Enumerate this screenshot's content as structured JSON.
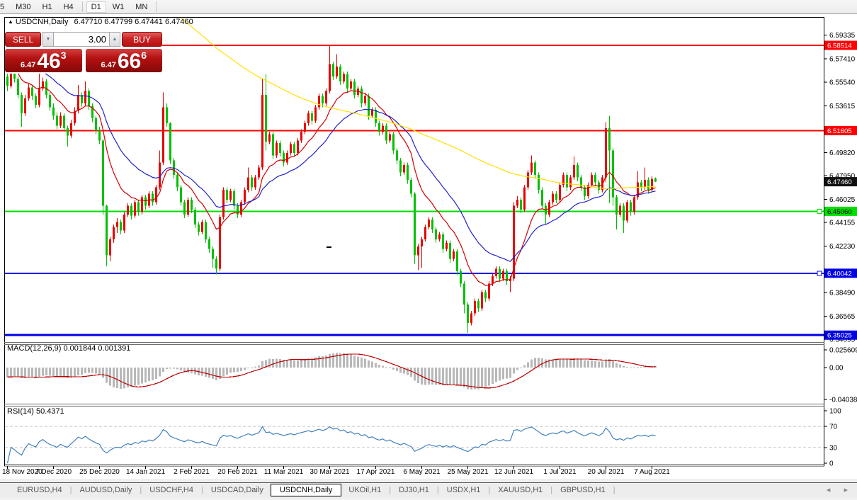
{
  "toolbar": {
    "timeframes": [
      "5",
      "M30",
      "H1",
      "H4",
      "D1",
      "W1",
      "MN"
    ],
    "active_timeframe": "D1"
  },
  "window": {
    "collapse_icon": "▲",
    "title": "USDCNH,Daily",
    "ohlc_text": "6.47710 6.47799 6.47441 6.47460"
  },
  "trade_panel": {
    "sell_label": "SELL",
    "buy_label": "BUY",
    "volume": "3.00",
    "spinner_down": "▼",
    "spinner_up": "▲",
    "sell_price": {
      "small": "6.47",
      "big": "46",
      "sup": "3"
    },
    "buy_price": {
      "small": "6.47",
      "big": "66",
      "sup": "6"
    }
  },
  "indicators": {
    "macd": {
      "label": "MACD(12,26,9)",
      "values": "0.001844 0.001391",
      "axis_labels": [
        "0.025609",
        "0.00",
        "-0.040386"
      ],
      "histogram_color": "#b8b8b8",
      "signal_color": "#c00000"
    },
    "rsi": {
      "label": "RSI(14)",
      "value": "50.4371",
      "axis_labels": [
        "100",
        "70",
        "30",
        "0"
      ],
      "level_lines": [
        70,
        30
      ],
      "line_color": "#4080c0"
    }
  },
  "price_axis": {
    "ticks": [
      6.59335,
      6.5741,
      6.5554,
      6.53615,
      6.4982,
      6.4795,
      6.46025,
      6.44155,
      6.4223,
      6.3849,
      6.36565,
      6.34695
    ],
    "badges": [
      {
        "value": "6.58514",
        "price": 6.58514,
        "bg": "#ff0000",
        "fg": "#ffffff",
        "role": "resistance"
      },
      {
        "value": "6.51605",
        "price": 6.51605,
        "bg": "#ff0000",
        "fg": "#ffffff",
        "role": "resistance"
      },
      {
        "value": "6.47460",
        "price": 6.4746,
        "bg": "#111111",
        "fg": "#ffffff",
        "role": "current-price"
      },
      {
        "value": "6.45060",
        "price": 6.4506,
        "bg": "#00de00",
        "fg": "#000000",
        "role": "support"
      },
      {
        "value": "6.40042",
        "price": 6.40042,
        "bg": "#0000e6",
        "fg": "#ffffff",
        "role": "support"
      },
      {
        "value": "6.35025",
        "price": 6.35025,
        "bg": "#0000e6",
        "fg": "#ffffff",
        "role": "support"
      }
    ]
  },
  "levels": [
    {
      "price": 6.58514,
      "color": "#ff0000",
      "width": 2,
      "handle": false
    },
    {
      "price": 6.51605,
      "color": "#ff0000",
      "width": 2,
      "handle": false
    },
    {
      "price": 6.4506,
      "color": "#00de00",
      "width": 2,
      "handle": true
    },
    {
      "price": 6.40042,
      "color": "#0000e6",
      "width": 2,
      "handle": true
    },
    {
      "price": 6.35025,
      "color": "#0000e6",
      "width": 3,
      "handle": false
    }
  ],
  "date_axis": {
    "labels": [
      {
        "text": "18 Nov 2020",
        "index": 0
      },
      {
        "text": "7 Dec 2020",
        "index": 13
      },
      {
        "text": "25 Dec 2020",
        "index": 26
      },
      {
        "text": "14 Jan 2021",
        "index": 39
      },
      {
        "text": "2 Feb 2021",
        "index": 52
      },
      {
        "text": "20 Feb 2021",
        "index": 65
      },
      {
        "text": "11 Mar 2021",
        "index": 78
      },
      {
        "text": "30 Mar 2021",
        "index": 91
      },
      {
        "text": "17 Apr 2021",
        "index": 104
      },
      {
        "text": "6 May 2021",
        "index": 117
      },
      {
        "text": "25 May 2021",
        "index": 130
      },
      {
        "text": "12 Jun 2021",
        "index": 143
      },
      {
        "text": "1 Jul 2021",
        "index": 156
      },
      {
        "text": "20 Jul 2021",
        "index": 169
      },
      {
        "text": "7 Aug 2021",
        "index": 182
      }
    ]
  },
  "tabs": {
    "items": [
      "EURUSD,H4",
      "AUDUSD,Daily",
      "USDCHF,H4",
      "USDCAD,Daily",
      "USDCNH,Daily",
      "UKOil,H1",
      "DJ30,H1",
      "USDX,H1",
      "XAUUSD,H1",
      "GBPUSD,H1"
    ],
    "active": "USDCNH,Daily",
    "scroll_left": "◂",
    "scroll_right": "▸"
  },
  "chart_data": {
    "type": "candlestick",
    "symbol": "USDCNH",
    "timeframe": "Daily",
    "title": "USDCNH,Daily",
    "ohlc_current": {
      "open": 6.4771,
      "high": 6.47799,
      "low": 6.47441,
      "close": 6.4746
    },
    "ylim": [
      6.344,
      6.605
    ],
    "bull_color": "#ea0000",
    "bear_color": "#00c000",
    "overlays": [
      {
        "name": "EMA12",
        "color": "#d40000"
      },
      {
        "name": "EMA26",
        "color": "#2222c8"
      },
      {
        "name": "SMA144",
        "color": "#ffe000"
      }
    ],
    "prehistory_for_overlays": [
      [
        100,
        6.98,
        6.66
      ],
      [
        50,
        6.65,
        6.56
      ]
    ],
    "macd_params": [
      12,
      26,
      9
    ],
    "rsi_period": 14,
    "candles": [
      [
        6.56,
        6.566,
        6.548,
        6.552
      ],
      [
        6.552,
        6.578,
        6.55,
        6.565
      ],
      [
        6.565,
        6.568,
        6.555,
        6.558
      ],
      [
        6.558,
        6.56,
        6.542,
        6.545
      ],
      [
        6.545,
        6.547,
        6.519,
        6.53
      ],
      [
        6.53,
        6.545,
        6.528,
        6.542
      ],
      [
        6.542,
        6.554,
        6.54,
        6.551
      ],
      [
        6.551,
        6.553,
        6.541,
        6.544
      ],
      [
        6.544,
        6.546,
        6.534,
        6.537
      ],
      [
        6.537,
        6.573,
        6.535,
        6.55
      ],
      [
        6.55,
        6.559,
        6.548,
        6.556
      ],
      [
        6.556,
        6.558,
        6.542,
        6.545
      ],
      [
        6.545,
        6.547,
        6.532,
        6.535
      ],
      [
        6.535,
        6.538,
        6.525,
        6.528
      ],
      [
        6.528,
        6.531,
        6.517,
        6.52
      ],
      [
        6.52,
        6.531,
        6.518,
        6.528
      ],
      [
        6.528,
        6.53,
        6.515,
        6.518
      ],
      [
        6.518,
        6.52,
        6.503,
        6.512
      ],
      [
        6.512,
        6.525,
        6.51,
        6.522
      ],
      [
        6.522,
        6.535,
        6.52,
        6.532
      ],
      [
        6.532,
        6.553,
        6.53,
        6.545
      ],
      [
        6.545,
        6.547,
        6.535,
        6.538
      ],
      [
        6.538,
        6.556,
        6.536,
        6.548
      ],
      [
        6.548,
        6.55,
        6.533,
        6.536
      ],
      [
        6.536,
        6.538,
        6.523,
        6.526
      ],
      [
        6.526,
        6.528,
        6.513,
        6.516
      ],
      [
        6.516,
        6.519,
        6.505,
        6.508
      ],
      [
        6.508,
        6.509,
        6.448,
        6.455
      ],
      [
        6.455,
        6.456,
        6.406,
        6.415
      ],
      [
        6.415,
        6.43,
        6.41,
        6.428
      ],
      [
        6.428,
        6.44,
        6.425,
        6.438
      ],
      [
        6.438,
        6.445,
        6.433,
        6.442
      ],
      [
        6.442,
        6.444,
        6.432,
        6.435
      ],
      [
        6.435,
        6.45,
        6.433,
        6.448
      ],
      [
        6.448,
        6.457,
        6.446,
        6.455
      ],
      [
        6.455,
        6.457,
        6.444,
        6.447
      ],
      [
        6.447,
        6.46,
        6.445,
        6.458
      ],
      [
        6.458,
        6.46,
        6.447,
        6.45
      ],
      [
        6.45,
        6.464,
        6.448,
        6.462
      ],
      [
        6.462,
        6.464,
        6.452,
        6.455
      ],
      [
        6.455,
        6.467,
        6.453,
        6.465
      ],
      [
        6.465,
        6.467,
        6.455,
        6.458
      ],
      [
        6.458,
        6.472,
        6.456,
        6.47
      ],
      [
        6.47,
        6.5,
        6.468,
        6.49
      ],
      [
        6.49,
        6.547,
        6.488,
        6.535
      ],
      [
        6.535,
        6.538,
        6.519,
        6.522
      ],
      [
        6.522,
        6.523,
        6.489,
        6.492
      ],
      [
        6.492,
        6.494,
        6.477,
        6.48
      ],
      [
        6.48,
        6.482,
        6.467,
        6.47
      ],
      [
        6.47,
        6.472,
        6.455,
        6.458
      ],
      [
        6.458,
        6.46,
        6.445,
        6.448
      ],
      [
        6.448,
        6.462,
        6.446,
        6.46
      ],
      [
        6.46,
        6.462,
        6.449,
        6.452
      ],
      [
        6.452,
        6.454,
        6.437,
        6.44
      ],
      [
        6.44,
        6.442,
        6.431,
        6.434
      ],
      [
        6.434,
        6.444,
        6.432,
        6.442
      ],
      [
        6.442,
        6.444,
        6.425,
        6.428
      ],
      [
        6.428,
        6.43,
        6.417,
        6.42
      ],
      [
        6.42,
        6.422,
        6.405,
        6.412
      ],
      [
        6.412,
        6.414,
        6.3995,
        6.404
      ],
      [
        6.404,
        6.448,
        6.402,
        6.446
      ],
      [
        6.446,
        6.47,
        6.444,
        6.468
      ],
      [
        6.468,
        6.47,
        6.457,
        6.46
      ],
      [
        6.46,
        6.469,
        6.458,
        6.467
      ],
      [
        6.467,
        6.469,
        6.452,
        6.455
      ],
      [
        6.455,
        6.457,
        6.445,
        6.448
      ],
      [
        6.448,
        6.46,
        6.446,
        6.458
      ],
      [
        6.458,
        6.47,
        6.456,
        6.468
      ],
      [
        6.468,
        6.486,
        6.466,
        6.478
      ],
      [
        6.478,
        6.48,
        6.467,
        6.47
      ],
      [
        6.47,
        6.48,
        6.468,
        6.478
      ],
      [
        6.478,
        6.488,
        6.476,
        6.486
      ],
      [
        6.486,
        6.558,
        6.484,
        6.545
      ],
      [
        6.545,
        6.562,
        6.5,
        6.507
      ],
      [
        6.507,
        6.515,
        6.505,
        6.513
      ],
      [
        6.513,
        6.515,
        6.493,
        6.496
      ],
      [
        6.496,
        6.508,
        6.494,
        6.506
      ],
      [
        6.506,
        6.508,
        6.495,
        6.498
      ],
      [
        6.498,
        6.5,
        6.487,
        6.49
      ],
      [
        6.49,
        6.5,
        6.488,
        6.498
      ],
      [
        6.498,
        6.507,
        6.496,
        6.505
      ],
      [
        6.505,
        6.507,
        6.495,
        6.498
      ],
      [
        6.498,
        6.51,
        6.496,
        6.508
      ],
      [
        6.508,
        6.517,
        6.506,
        6.515
      ],
      [
        6.515,
        6.524,
        6.513,
        6.522
      ],
      [
        6.522,
        6.532,
        6.52,
        6.53
      ],
      [
        6.53,
        6.532,
        6.521,
        6.524
      ],
      [
        6.524,
        6.537,
        6.522,
        6.535
      ],
      [
        6.535,
        6.546,
        6.533,
        6.544
      ],
      [
        6.544,
        6.546,
        6.535,
        6.538
      ],
      [
        6.538,
        6.55,
        6.536,
        6.548
      ],
      [
        6.548,
        6.5851,
        6.546,
        6.57
      ],
      [
        6.57,
        6.572,
        6.557,
        6.56
      ],
      [
        6.56,
        6.578,
        6.558,
        6.568
      ],
      [
        6.568,
        6.57,
        6.553,
        6.556
      ],
      [
        6.556,
        6.564,
        6.554,
        6.562
      ],
      [
        6.562,
        6.564,
        6.547,
        6.55
      ],
      [
        6.55,
        6.558,
        6.548,
        6.556
      ],
      [
        6.556,
        6.558,
        6.542,
        6.545
      ],
      [
        6.545,
        6.552,
        6.543,
        6.55
      ],
      [
        6.55,
        6.552,
        6.535,
        6.538
      ],
      [
        6.538,
        6.546,
        6.536,
        6.544
      ],
      [
        6.544,
        6.546,
        6.525,
        6.528
      ],
      [
        6.528,
        6.535,
        6.526,
        6.533
      ],
      [
        6.533,
        6.535,
        6.519,
        6.522
      ],
      [
        6.522,
        6.524,
        6.512,
        6.515
      ],
      [
        6.515,
        6.522,
        6.513,
        6.52
      ],
      [
        6.52,
        6.522,
        6.505,
        6.508
      ],
      [
        6.508,
        6.515,
        6.506,
        6.513
      ],
      [
        6.513,
        6.515,
        6.497,
        6.5
      ],
      [
        6.5,
        6.502,
        6.489,
        6.492
      ],
      [
        6.492,
        6.494,
        6.479,
        6.482
      ],
      [
        6.482,
        6.49,
        6.48,
        6.488
      ],
      [
        6.488,
        6.49,
        6.473,
        6.476
      ],
      [
        6.476,
        6.478,
        6.462,
        6.465
      ],
      [
        6.465,
        6.466,
        6.408,
        6.415
      ],
      [
        6.415,
        6.424,
        6.403,
        6.422
      ],
      [
        6.422,
        6.43,
        6.405,
        6.428
      ],
      [
        6.428,
        6.44,
        6.426,
        6.438
      ],
      [
        6.438,
        6.446,
        6.436,
        6.444
      ],
      [
        6.444,
        6.446,
        6.433,
        6.436
      ],
      [
        6.436,
        6.438,
        6.425,
        6.428
      ],
      [
        6.428,
        6.434,
        6.426,
        6.432
      ],
      [
        6.432,
        6.434,
        6.417,
        6.42
      ],
      [
        6.42,
        6.427,
        6.418,
        6.425
      ],
      [
        6.425,
        6.427,
        6.409,
        6.412
      ],
      [
        6.412,
        6.42,
        6.41,
        6.418
      ],
      [
        6.418,
        6.42,
        6.399,
        6.402
      ],
      [
        6.402,
        6.404,
        6.389,
        6.392
      ],
      [
        6.392,
        6.394,
        6.368,
        6.375
      ],
      [
        6.375,
        6.377,
        6.352,
        6.36
      ],
      [
        6.36,
        6.37,
        6.358,
        6.368
      ],
      [
        6.368,
        6.38,
        6.366,
        6.378
      ],
      [
        6.378,
        6.38,
        6.369,
        6.372
      ],
      [
        6.372,
        6.387,
        6.37,
        6.385
      ],
      [
        6.385,
        6.387,
        6.377,
        6.38
      ],
      [
        6.38,
        6.394,
        6.378,
        6.392
      ],
      [
        6.392,
        6.4,
        6.39,
        6.398
      ],
      [
        6.398,
        6.406,
        6.396,
        6.404
      ],
      [
        6.404,
        6.406,
        6.393,
        6.396
      ],
      [
        6.396,
        6.404,
        6.394,
        6.402
      ],
      [
        6.402,
        6.404,
        6.391,
        6.394
      ],
      [
        6.394,
        6.398,
        6.385,
        6.396
      ],
      [
        6.396,
        6.458,
        6.394,
        6.455
      ],
      [
        6.455,
        6.463,
        6.453,
        6.46
      ],
      [
        6.46,
        6.462,
        6.449,
        6.452
      ],
      [
        6.452,
        6.472,
        6.45,
        6.47
      ],
      [
        6.47,
        6.484,
        6.468,
        6.482
      ],
      [
        6.482,
        6.496,
        6.48,
        6.49
      ],
      [
        6.49,
        6.492,
        6.477,
        6.48
      ],
      [
        6.48,
        6.482,
        6.465,
        6.468
      ],
      [
        6.468,
        6.47,
        6.452,
        6.455
      ],
      [
        6.455,
        6.457,
        6.44,
        6.448
      ],
      [
        6.448,
        6.46,
        6.446,
        6.458
      ],
      [
        6.458,
        6.467,
        6.456,
        6.465
      ],
      [
        6.465,
        6.467,
        6.457,
        6.46
      ],
      [
        6.46,
        6.474,
        6.458,
        6.472
      ],
      [
        6.472,
        6.482,
        6.47,
        6.48
      ],
      [
        6.48,
        6.482,
        6.467,
        6.47
      ],
      [
        6.47,
        6.48,
        6.468,
        6.478
      ],
      [
        6.478,
        6.495,
        6.476,
        6.488
      ],
      [
        6.488,
        6.49,
        6.475,
        6.478
      ],
      [
        6.478,
        6.48,
        6.467,
        6.47
      ],
      [
        6.47,
        6.472,
        6.46,
        6.463
      ],
      [
        6.463,
        6.474,
        6.461,
        6.472
      ],
      [
        6.472,
        6.482,
        6.47,
        6.48
      ],
      [
        6.48,
        6.482,
        6.471,
        6.474
      ],
      [
        6.474,
        6.476,
        6.465,
        6.468
      ],
      [
        6.468,
        6.48,
        6.466,
        6.478
      ],
      [
        6.478,
        6.523,
        6.474,
        6.518
      ],
      [
        6.518,
        6.528,
        6.457,
        6.5
      ],
      [
        6.5,
        6.502,
        6.455,
        6.462
      ],
      [
        6.462,
        6.464,
        6.436,
        6.448
      ],
      [
        6.448,
        6.457,
        6.446,
        6.455
      ],
      [
        6.455,
        6.457,
        6.433,
        6.443
      ],
      [
        6.443,
        6.46,
        6.441,
        6.458
      ],
      [
        6.458,
        6.46,
        6.447,
        6.45
      ],
      [
        6.45,
        6.464,
        6.448,
        6.462
      ],
      [
        6.462,
        6.483,
        6.46,
        6.474
      ],
      [
        6.474,
        6.476,
        6.467,
        6.47
      ],
      [
        6.47,
        6.486,
        6.468,
        6.476
      ],
      [
        6.476,
        6.478,
        6.465,
        6.468
      ],
      [
        6.468,
        6.479,
        6.466,
        6.477
      ],
      [
        6.4771,
        6.478,
        6.4744,
        6.4746
      ]
    ]
  }
}
